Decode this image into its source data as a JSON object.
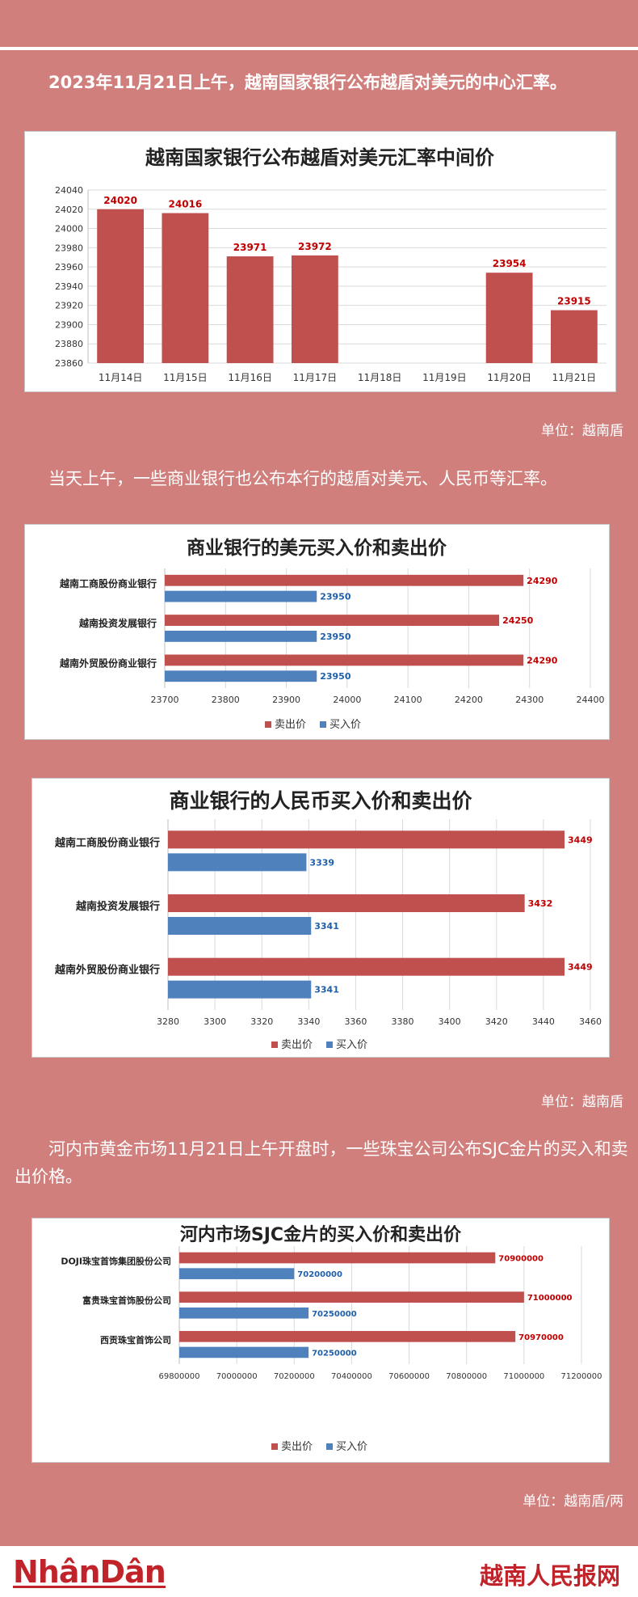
{
  "intro": {
    "p1": "2023年11月21日上午，越南国家银行公布越盾对美元的中心汇率。",
    "p2": "当天上午，一些商业银行也公布本行的越盾对美元、人民币等汇率。",
    "p3": "河内市黄金市场11月21日上午开盘时，一些珠宝公司公布SJC金片的买入和卖出价格。"
  },
  "units": {
    "u1": "单位：越南盾",
    "u2": "单位：越南盾",
    "u3": "单位：越南盾/两"
  },
  "colors": {
    "sell": "#c0504d",
    "buy": "#4f81bd",
    "background": "#d07f7c"
  },
  "chart_data": [
    {
      "type": "bar",
      "title": "越南国家银行公布越盾对美元汇率中间价",
      "categories": [
        "11月14日",
        "11月15日",
        "11月16日",
        "11月17日",
        "11月18日",
        "11月19日",
        "11月20日",
        "11月21日"
      ],
      "values": [
        24020,
        24016,
        23971,
        23972,
        null,
        null,
        23954,
        23915
      ],
      "data_labels": [
        "24020",
        "24016",
        "23971",
        "23972",
        "",
        "",
        "23954",
        "23915"
      ],
      "y_ticks": [
        "23860",
        "23880",
        "23900",
        "23920",
        "23940",
        "23960",
        "23980",
        "24000",
        "24020",
        "24040"
      ],
      "ylim": [
        23860,
        24040
      ],
      "grid": true
    },
    {
      "type": "bar",
      "orientation": "horizontal",
      "title": "商业银行的美元买入价和卖出价",
      "categories": [
        "越南工商股份商业银行",
        "越南投资发展银行",
        "越南外贸股份商业银行"
      ],
      "series": [
        {
          "name": "卖出价",
          "values": [
            24290,
            24250,
            24290
          ],
          "labels": [
            "24290",
            "24250",
            "24290"
          ]
        },
        {
          "name": "买入价",
          "values": [
            23950,
            23950,
            23950
          ],
          "labels": [
            "23950",
            "23950",
            "23950"
          ]
        }
      ],
      "x_ticks": [
        "23700",
        "23800",
        "23900",
        "24000",
        "24100",
        "24200",
        "24300",
        "24400"
      ],
      "xlim": [
        23700,
        24400
      ],
      "legend": "bottom",
      "grid": true
    },
    {
      "type": "bar",
      "orientation": "horizontal",
      "title": "商业银行的人民币买入价和卖出价",
      "categories": [
        "越南工商股份商业银行",
        "越南投资发展银行",
        "越南外贸股份商业银行"
      ],
      "series": [
        {
          "name": "卖出价",
          "values": [
            3449,
            3432,
            3449
          ],
          "labels": [
            "3449",
            "3432",
            "3449"
          ]
        },
        {
          "name": "买入价",
          "values": [
            3339,
            3341,
            3341
          ],
          "labels": [
            "3339",
            "3341",
            "3341"
          ]
        }
      ],
      "x_ticks": [
        "3280",
        "3300",
        "3320",
        "3340",
        "3360",
        "3380",
        "3400",
        "3420",
        "3440",
        "3460"
      ],
      "xlim": [
        3280,
        3460
      ],
      "legend": "bottom",
      "grid": true
    },
    {
      "type": "bar",
      "orientation": "horizontal",
      "title": "河内市场SJC金片的买入价和卖出价",
      "categories": [
        "DOJI珠宝首饰集团股份公司",
        "富贵珠宝首饰股份公司",
        "西贡珠宝首饰公司"
      ],
      "series": [
        {
          "name": "卖出价",
          "values": [
            70900000,
            71000000,
            70970000
          ],
          "labels": [
            "70900000",
            "71000000",
            "70970000"
          ]
        },
        {
          "name": "买入价",
          "values": [
            70200000,
            70250000,
            70250000
          ],
          "labels": [
            "70200000",
            "70250000",
            "70250000"
          ]
        }
      ],
      "x_ticks": [
        "69800000",
        "70000000",
        "70200000",
        "70400000",
        "70600000",
        "70800000",
        "71000000",
        "71200000"
      ],
      "xlim": [
        69800000,
        71200000
      ],
      "legend": "bottom",
      "grid": true
    }
  ],
  "footer": {
    "logo_left": "NhânDân",
    "logo_right": "越南人民报网"
  }
}
